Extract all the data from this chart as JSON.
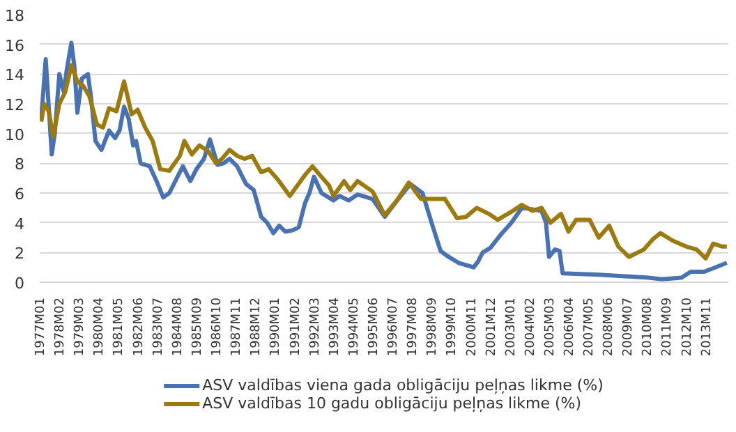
{
  "chart_data": {
    "type": "line",
    "x": [
      "1977-01",
      "1977-04",
      "1977-08",
      "1977-10",
      "1978-01",
      "1978-04",
      "1978-06",
      "1978-09",
      "1978-11",
      "1979-01",
      "1979-04",
      "1979-08",
      "1979-10",
      "1980-01",
      "1980-05",
      "1980-10",
      "1981-02",
      "1981-05",
      "1981-08",
      "1981-11",
      "1982-02",
      "1982-04",
      "1982-07",
      "1983-01",
      "1983-06",
      "1983-10",
      "1984-02",
      "1984-07",
      "1984-11",
      "1985-04",
      "1985-08",
      "1986-01",
      "1986-05",
      "1986-10",
      "1987-02",
      "1987-06",
      "1987-11",
      "1988-05",
      "1988-10",
      "1989-03",
      "1989-07",
      "1989-11",
      "1990-03",
      "1990-07",
      "1990-12",
      "1991-04",
      "1991-08",
      "1991-11",
      "1992-02",
      "1992-07",
      "1993-03",
      "1993-07",
      "1994-01",
      "1994-07",
      "1995-05",
      "1996-01",
      "1996-10",
      "1997-06",
      "1998-02",
      "1998-09",
      "1999-02",
      "1999-06",
      "2000-02",
      "2000-12",
      "2001-03",
      "2001-06",
      "2001-11",
      "2002-06",
      "2003-01",
      "2003-08",
      "2004-03",
      "2004-09",
      "2004-12",
      "2005-02",
      "2005-06",
      "2005-09",
      "2005-11",
      "2007-11",
      "2010-08",
      "2011-05",
      "2012-06",
      "2012-12",
      "2013-09",
      "2014-12"
    ],
    "series": [
      {
        "name": "ASV valdības viena gada obligāciju peļņas likme (%)",
        "color": "#4a72b0",
        "values": [
          11.0,
          15.0,
          8.6,
          10.0,
          14.0,
          12.8,
          14.3,
          16.1,
          14.5,
          11.4,
          13.7,
          14.0,
          12.5,
          9.5,
          8.9,
          10.2,
          9.7,
          10.2,
          11.8,
          11.0,
          9.2,
          9.5,
          8.0,
          7.8,
          6.7,
          5.7,
          6.0,
          7.0,
          7.8,
          6.8,
          7.6,
          8.3,
          9.6,
          7.9,
          8.0,
          8.3,
          7.8,
          6.6,
          6.2,
          4.4,
          4.0,
          3.3,
          3.8,
          3.4,
          3.5,
          3.7,
          5.3,
          6.0,
          7.1,
          6.0,
          5.5,
          5.8,
          5.5,
          5.9,
          5.6,
          4.4,
          5.6,
          6.6,
          6.0,
          3.7,
          2.1,
          1.8,
          1.3,
          1.0,
          1.4,
          2.0,
          2.3,
          3.2,
          4.0,
          5.0,
          4.9,
          4.8,
          4.0,
          1.7,
          2.2,
          2.1,
          0.6,
          0.5,
          0.3,
          0.2,
          0.3,
          0.7,
          0.7,
          1.3
        ]
      },
      {
        "name": "ASV valdības 10 gadu obligāciju peļņas likme (%)",
        "color": "#9c7a12",
        "x": [
          "1977-01",
          "1977-03",
          "1977-06",
          "1977-09",
          "1978-01",
          "1978-05",
          "1978-09",
          "1979-01",
          "1979-05",
          "1979-09",
          "1980-02",
          "1980-06",
          "1980-10",
          "1981-03",
          "1981-08",
          "1982-01",
          "1982-05",
          "1982-10",
          "1983-03",
          "1983-08",
          "1984-02",
          "1984-09",
          "1984-12",
          "1985-05",
          "1985-10",
          "1986-04",
          "1986-09",
          "1987-01",
          "1987-06",
          "1987-11",
          "1988-04",
          "1988-09",
          "1989-03",
          "1989-08",
          "1990-02",
          "1990-10",
          "1991-08",
          "1992-01",
          "1992-06",
          "1992-12",
          "1993-03",
          "1993-10",
          "1994-02",
          "1994-07",
          "1995-05",
          "1996-01",
          "1996-09",
          "1997-05",
          "1998-01",
          "1998-07",
          "1999-05",
          "2000-01",
          "2000-07",
          "2001-02",
          "2001-10",
          "2002-04",
          "2003-02",
          "2003-08",
          "2004-03",
          "2004-09",
          "2005-03",
          "2005-10",
          "2006-03",
          "2006-08",
          "2007-05",
          "2007-11",
          "2008-06",
          "2008-12",
          "2009-07",
          "2010-05",
          "2010-11",
          "2011-04",
          "2011-12",
          "2012-09",
          "2013-04",
          "2013-10",
          "2014-03",
          "2014-09",
          "2014-12"
        ],
        "values": [
          10.8,
          12.0,
          11.5,
          9.8,
          12.0,
          12.8,
          14.6,
          13.5,
          13.2,
          12.5,
          10.6,
          10.4,
          11.7,
          11.5,
          13.5,
          11.3,
          11.6,
          10.4,
          9.5,
          7.6,
          7.5,
          8.5,
          9.5,
          8.6,
          9.2,
          8.8,
          8.0,
          8.3,
          8.9,
          8.5,
          8.3,
          8.5,
          7.4,
          7.6,
          6.9,
          5.8,
          7.2,
          7.8,
          7.2,
          6.5,
          5.8,
          6.8,
          6.2,
          6.8,
          6.1,
          4.5,
          5.5,
          6.7,
          5.6,
          5.6,
          5.6,
          4.3,
          4.4,
          5.0,
          4.6,
          4.2,
          4.8,
          5.2,
          4.8,
          5.0,
          4.0,
          4.6,
          3.4,
          4.2,
          4.2,
          3.0,
          3.8,
          2.4,
          1.7,
          2.2,
          2.9,
          3.3,
          2.8,
          2.4,
          2.2,
          1.6,
          2.6,
          2.4,
          2.4
        ]
      }
    ],
    "xlim": [
      "1976-12",
      "2015-01"
    ],
    "xticks": [
      {
        "value": "1977-01",
        "label": "1977M01"
      },
      {
        "value": "1978-02",
        "label": "1978M02"
      },
      {
        "value": "1979-03",
        "label": "1979M03"
      },
      {
        "value": "1980-04",
        "label": "1980M04"
      },
      {
        "value": "1981-05",
        "label": "1981M05"
      },
      {
        "value": "1982-06",
        "label": "1982M06"
      },
      {
        "value": "1983-07",
        "label": "1983M07"
      },
      {
        "value": "1984-08",
        "label": "1984M08"
      },
      {
        "value": "1985-09",
        "label": "1985M09"
      },
      {
        "value": "1986-10",
        "label": "1986M10"
      },
      {
        "value": "1987-11",
        "label": "1987M11"
      },
      {
        "value": "1988-12",
        "label": "1988M12"
      },
      {
        "value": "1990-01",
        "label": "1990M01"
      },
      {
        "value": "1991-02",
        "label": "1991M02"
      },
      {
        "value": "1992-03",
        "label": "1992M03"
      },
      {
        "value": "1993-04",
        "label": "1993M04"
      },
      {
        "value": "1994-05",
        "label": "1994M05"
      },
      {
        "value": "1995-06",
        "label": "1995M06"
      },
      {
        "value": "1996-07",
        "label": "1996M07"
      },
      {
        "value": "1997-08",
        "label": "1997M08"
      },
      {
        "value": "1998-09",
        "label": "1998M09"
      },
      {
        "value": "1999-10",
        "label": "1999M10"
      },
      {
        "value": "2000-11",
        "label": "2000M11"
      },
      {
        "value": "2001-12",
        "label": "2001M12"
      },
      {
        "value": "2003-01",
        "label": "2003M01"
      },
      {
        "value": "2004-02",
        "label": "2004M02"
      },
      {
        "value": "2005-03",
        "label": "2005M03"
      },
      {
        "value": "2006-04",
        "label": "2006M04"
      },
      {
        "value": "2007-05",
        "label": "2007M05"
      },
      {
        "value": "2008-06",
        "label": "2008M06"
      },
      {
        "value": "2009-07",
        "label": "2009M07"
      },
      {
        "value": "2010-08",
        "label": "2010M08"
      },
      {
        "value": "2011-09",
        "label": "2011M09"
      },
      {
        "value": "2012-10",
        "label": "2012M10"
      },
      {
        "value": "2013-11",
        "label": "2013M11"
      }
    ],
    "ylim": [
      0,
      18
    ],
    "yticks": [
      0,
      2,
      4,
      6,
      8,
      10,
      12,
      14,
      16,
      18
    ],
    "grid": "y",
    "legend": "bottom",
    "marker": "none",
    "line_style": "solid"
  }
}
